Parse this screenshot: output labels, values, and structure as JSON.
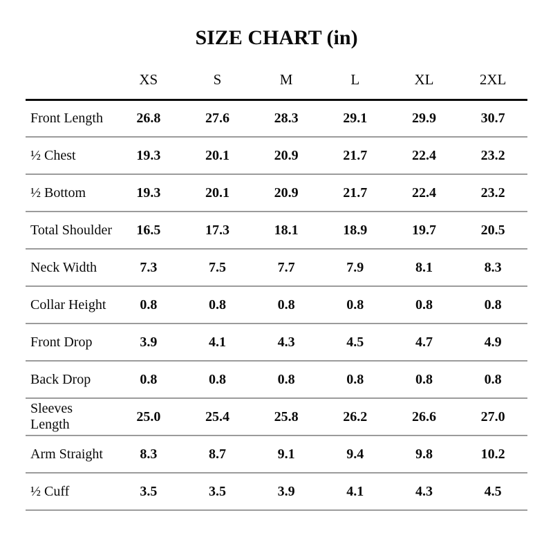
{
  "page": {
    "title": "SIZE CHART (in)"
  },
  "table": {
    "columns": [
      "XS",
      "S",
      "M",
      "L",
      "XL",
      "2XL"
    ],
    "rows": [
      {
        "label": "Front Length",
        "values": [
          "26.8",
          "27.6",
          "28.3",
          "29.1",
          "29.9",
          "30.7"
        ]
      },
      {
        "label": "½ Chest",
        "values": [
          "19.3",
          "20.1",
          "20.9",
          "21.7",
          "22.4",
          "23.2"
        ]
      },
      {
        "label": "½ Bottom",
        "values": [
          "19.3",
          "20.1",
          "20.9",
          "21.7",
          "22.4",
          "23.2"
        ]
      },
      {
        "label": "Total Shoulder",
        "values": [
          "16.5",
          "17.3",
          "18.1",
          "18.9",
          "19.7",
          "20.5"
        ]
      },
      {
        "label": "Neck Width",
        "values": [
          "7.3",
          "7.5",
          "7.7",
          "7.9",
          "8.1",
          "8.3"
        ]
      },
      {
        "label": "Collar Height",
        "values": [
          "0.8",
          "0.8",
          "0.8",
          "0.8",
          "0.8",
          "0.8"
        ]
      },
      {
        "label": "Front Drop",
        "values": [
          "3.9",
          "4.1",
          "4.3",
          "4.5",
          "4.7",
          "4.9"
        ]
      },
      {
        "label": "Back Drop",
        "values": [
          "0.8",
          "0.8",
          "0.8",
          "0.8",
          "0.8",
          "0.8"
        ]
      },
      {
        "label": "Sleeves Length",
        "values": [
          "25.0",
          "25.4",
          "25.8",
          "26.2",
          "26.6",
          "27.0"
        ]
      },
      {
        "label": "Arm Straight",
        "values": [
          "8.3",
          "8.7",
          "9.1",
          "9.4",
          "9.8",
          "10.2"
        ]
      },
      {
        "label": "½ Cuff",
        "values": [
          "3.5",
          "3.5",
          "3.9",
          "4.1",
          "4.3",
          "4.5"
        ]
      }
    ]
  },
  "colors": {
    "background": "#ffffff",
    "text": "#0a0a0a",
    "header_rule": "#0d0d0d",
    "row_rule": "#9b9b9b"
  }
}
